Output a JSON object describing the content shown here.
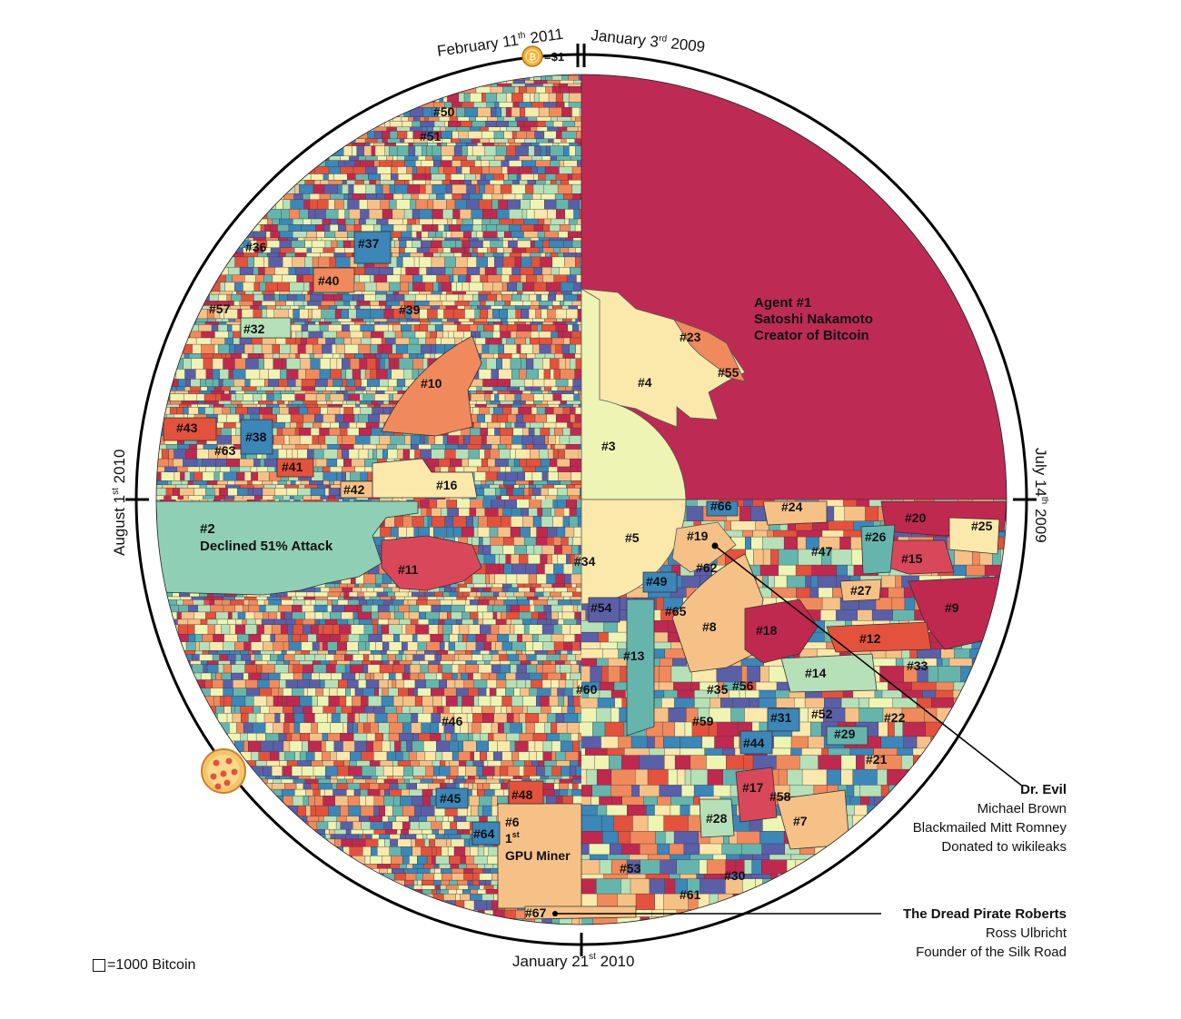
{
  "dates": {
    "top_left": {
      "main": "February 11",
      "sup": "th",
      "tail": " 2011"
    },
    "top_right": {
      "main": "January 3",
      "sup": "rd",
      "tail": " 2009"
    },
    "right": {
      "main": "July 14",
      "sup": "th",
      "tail": " 2009"
    },
    "bottom": {
      "main": "January 21",
      "sup": "st",
      "tail": " 2010"
    },
    "left": {
      "main": "August 1",
      "sup": "st",
      "tail": " 2010"
    }
  },
  "coin_value": "=$1",
  "agent1": {
    "line1": "Agent #1",
    "line2": "Satoshi Nakamoto",
    "line3": "Creator of Bitcoin"
  },
  "agent2": {
    "line1": "#2",
    "line2": "Declined 51% Attack"
  },
  "agent6": {
    "line1": "#6",
    "line2": "1",
    "sup": "st",
    "line3": "GPU Miner"
  },
  "labels": [
    "#3",
    "#4",
    "#5",
    "#7",
    "#8",
    "#9",
    "#10",
    "#11",
    "#12",
    "#13",
    "#14",
    "#15",
    "#16",
    "#17",
    "#18",
    "#19",
    "#20",
    "#21",
    "#22",
    "#23",
    "#24",
    "#25",
    "#26",
    "#27",
    "#28",
    "#29",
    "#30",
    "#31",
    "#32",
    "#33",
    "#34",
    "#35",
    "#36",
    "#37",
    "#38",
    "#39",
    "#40",
    "#41",
    "#42",
    "#43",
    "#44",
    "#45",
    "#46",
    "#47",
    "#48",
    "#49",
    "#50",
    "#51",
    "#52",
    "#53",
    "#54",
    "#55",
    "#56",
    "#57",
    "#58",
    "#59",
    "#60",
    "#61",
    "#62",
    "#63",
    "#64",
    "#65",
    "#66",
    "#67"
  ],
  "dr_evil": {
    "title": "Dr. Evil",
    "line1": "Michael Brown",
    "line2": "Blackmailed Mitt Romney",
    "line3": "Donated to wikileaks"
  },
  "dread_pirate": {
    "title": "The Dread Pirate Roberts",
    "line1": "Ross Ulbricht",
    "line2": "Founder of the Silk Road"
  },
  "legend": "=1000 Bitcoin",
  "palette": [
    "#c0294f",
    "#e3523d",
    "#f08a5c",
    "#f6c187",
    "#fbe8ab",
    "#eef4b3",
    "#b6e0b7",
    "#66b5ad",
    "#3c86b8",
    "#5a5fa8"
  ],
  "satoshi_color": "#bd2b54",
  "agent2_color": "#8fcfb5",
  "ring_color": "#000000"
}
